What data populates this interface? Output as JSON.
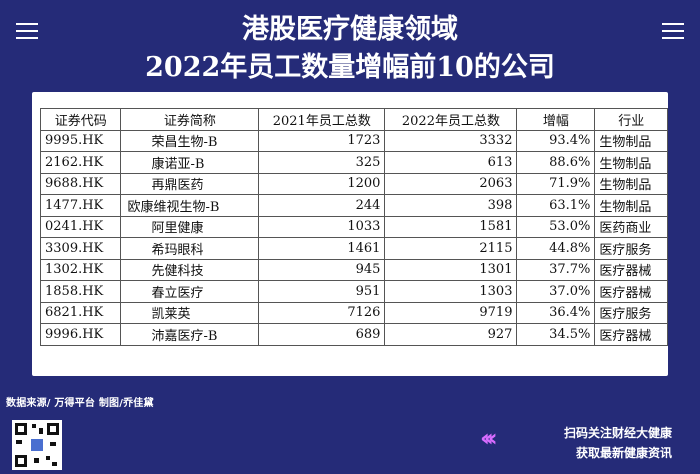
{
  "header": {
    "title_line1": "港股医疗健康领域",
    "title_line2": "2022年员工数量增幅前10的公司"
  },
  "table": {
    "columns": [
      "证券代码",
      "证券简称",
      "2021年员工总数",
      "2022年员工总数",
      "增幅",
      "行业"
    ],
    "rows": [
      [
        "9995.HK",
        "荣昌生物-B",
        "1723",
        "3332",
        "93.4%",
        "生物制品"
      ],
      [
        "2162.HK",
        "康诺亚-B",
        "325",
        "613",
        "88.6%",
        "生物制品"
      ],
      [
        "9688.HK",
        "再鼎医药",
        "1200",
        "2063",
        "71.9%",
        "生物制品"
      ],
      [
        "1477.HK",
        "欧康维视生物-B",
        "244",
        "398",
        "63.1%",
        "生物制品"
      ],
      [
        "0241.HK",
        "阿里健康",
        "1033",
        "1581",
        "53.0%",
        "医药商业"
      ],
      [
        "3309.HK",
        "希玛眼科",
        "1461",
        "2115",
        "44.8%",
        "医疗服务"
      ],
      [
        "1302.HK",
        "先健科技",
        "945",
        "1301",
        "37.7%",
        "医疗器械"
      ],
      [
        "1858.HK",
        "春立医疗",
        "951",
        "1303",
        "37.0%",
        "医疗器械"
      ],
      [
        "6821.HK",
        "凯莱英",
        "7126",
        "9719",
        "36.4%",
        "医疗服务"
      ],
      [
        "9996.HK",
        "沛嘉医疗-B",
        "689",
        "927",
        "34.5%",
        "医疗器械"
      ]
    ]
  },
  "footer": {
    "source": "数据来源/ 万得平台  制图/乔佳黛",
    "promo_line1": "扫码关注财经大健康",
    "promo_line2": "获取最新健康资讯",
    "arrows": "‹‹‹"
  },
  "colors": {
    "background": "#252b78",
    "panel": "#ffffff",
    "arrow_accent": "#d76cff"
  }
}
